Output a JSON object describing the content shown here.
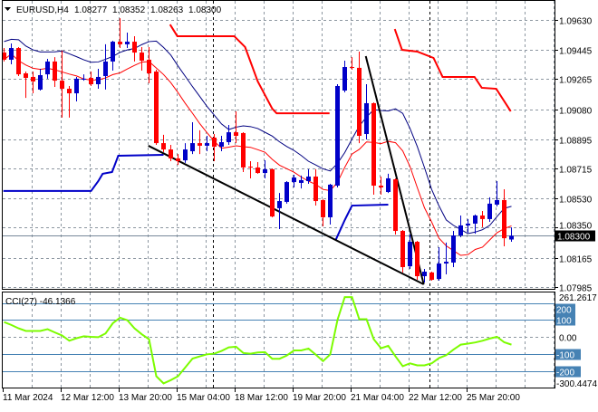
{
  "header": {
    "symbol": "EURUSD,H4",
    "open": "1.08277",
    "high": "1.08352",
    "low": "1.08263",
    "close": "1.08300"
  },
  "colors": {
    "bull": "#0000c8",
    "bear": "#ff0000",
    "ma_upper": "#000080",
    "ma_lower": "#ff0000",
    "cci": "#7cfc00",
    "level": "#4682b4",
    "price_line": "#778899",
    "trendline": "#000000"
  },
  "chart_data": {
    "type": "candlestick",
    "timeframe": "H4",
    "price_axis": {
      "ticks": [
        "1.09630",
        "1.09445",
        "1.09265",
        "1.09080",
        "1.08895",
        "1.08715",
        "1.08530",
        "1.08350",
        "1.08165",
        "1.07985"
      ],
      "current_price": "1.08300"
    },
    "time_axis": {
      "labels": [
        "11 Mar 2024",
        "12 Mar 12:00",
        "13 Mar 20:00",
        "15 Mar 04:00",
        "18 Mar 12:00",
        "19 Mar 20:00",
        "21 Mar 04:00",
        "22 Mar 12:00",
        "25 Mar 20:00"
      ]
    },
    "grid": true,
    "candles_ohlc": [
      [
        1.09429,
        1.09457,
        1.09374,
        1.09385
      ],
      [
        1.09385,
        1.09485,
        1.09357,
        1.09457
      ],
      [
        1.09457,
        1.09463,
        1.09284,
        1.09295
      ],
      [
        1.09301,
        1.09312,
        1.0915,
        1.09273
      ],
      [
        1.09279,
        1.09312,
        1.09178,
        1.09251
      ],
      [
        1.09201,
        1.09329,
        1.09195,
        1.0929
      ],
      [
        1.09295,
        1.0939,
        1.09268,
        1.09374
      ],
      [
        1.09374,
        1.09401,
        1.09217,
        1.09256
      ],
      [
        1.09256,
        1.09441,
        1.09028,
        1.09206
      ],
      [
        1.09206,
        1.09223,
        1.09028,
        1.09178
      ],
      [
        1.09178,
        1.09279,
        1.09128,
        1.09268
      ],
      [
        1.09262,
        1.09295,
        1.09256,
        1.09268
      ],
      [
        1.09273,
        1.09312,
        1.09223,
        1.09234
      ],
      [
        1.09234,
        1.09329,
        1.09206,
        1.09279
      ],
      [
        1.09284,
        1.0948,
        1.09201,
        1.09374
      ],
      [
        1.09374,
        1.09502,
        1.09318,
        1.09496
      ],
      [
        1.09496,
        1.09641,
        1.09457,
        1.0948
      ],
      [
        1.0948,
        1.09552,
        1.09457,
        1.09496
      ],
      [
        1.09496,
        1.0953,
        1.09374,
        1.09429
      ],
      [
        1.09429,
        1.09463,
        1.09318,
        1.09379
      ],
      [
        1.09385,
        1.09463,
        1.0924,
        1.09301
      ],
      [
        1.09312,
        1.09323,
        1.0886,
        1.08871
      ],
      [
        1.08871,
        1.08922,
        1.08816,
        1.08832
      ],
      [
        1.08832,
        1.0886,
        1.0876,
        1.08777
      ],
      [
        1.08777,
        1.08804,
        1.08737,
        1.0876
      ],
      [
        1.08765,
        1.08871,
        1.08749,
        1.08832
      ],
      [
        1.08821,
        1.09,
        1.08804,
        1.08871
      ],
      [
        1.08871,
        1.0895,
        1.08804,
        1.08855
      ],
      [
        1.08855,
        1.08916,
        1.08821,
        1.08871
      ],
      [
        1.08905,
        1.08927,
        1.0876,
        1.08849
      ],
      [
        1.08849,
        1.08916,
        1.08821,
        1.08877
      ],
      [
        1.08877,
        1.08983,
        1.0886,
        1.08938
      ],
      [
        1.08938,
        1.09067,
        1.08871,
        1.08916
      ],
      [
        1.08933,
        1.08938,
        1.08693,
        1.08721
      ],
      [
        1.08726,
        1.0876,
        1.08654,
        1.08721
      ],
      [
        1.08721,
        1.08754,
        1.08682,
        1.08687
      ],
      [
        1.08687,
        1.08765,
        1.08654,
        1.0871
      ],
      [
        1.0871,
        1.08715,
        1.08414,
        1.08419
      ],
      [
        1.0847,
        1.08564,
        1.08341,
        1.08514
      ],
      [
        1.08509,
        1.08637,
        1.08498,
        1.08631
      ],
      [
        1.08631,
        1.08676,
        1.08598,
        1.08659
      ],
      [
        1.08626,
        1.08671,
        1.08592,
        1.08643
      ],
      [
        1.08637,
        1.0871,
        1.0862,
        1.08665
      ],
      [
        1.08665,
        1.0871,
        1.08486,
        1.08514
      ],
      [
        1.0852,
        1.08525,
        1.08358,
        1.08414
      ],
      [
        1.08414,
        1.0862,
        1.08369,
        1.08615
      ],
      [
        1.08609,
        1.09234,
        1.08598,
        1.09223
      ],
      [
        1.09195,
        1.09379,
        1.09184,
        1.0934
      ],
      [
        1.0934,
        1.09401,
        1.09323,
        1.09335
      ],
      [
        1.09335,
        1.09435,
        1.08871,
        1.08916
      ],
      [
        1.08927,
        1.09234,
        1.08894,
        1.09117
      ],
      [
        1.09117,
        1.09122,
        1.08553,
        1.08609
      ],
      [
        1.08609,
        1.08665,
        1.08553,
        1.08598
      ],
      [
        1.0857,
        1.08682,
        1.08564,
        1.08654
      ],
      [
        1.08648,
        1.08654,
        1.08308,
        1.0833
      ],
      [
        1.0833,
        1.08336,
        1.08074,
        1.08107
      ],
      [
        1.08112,
        1.08308,
        1.08096,
        1.08263
      ],
      [
        1.08263,
        1.08269,
        1.08029,
        1.08051
      ],
      [
        1.08051,
        1.08096,
        1.08012,
        1.08079
      ],
      [
        1.08074,
        1.08079,
        1.08023,
        1.08029
      ],
      [
        1.08034,
        1.0823,
        1.08023,
        1.08129
      ],
      [
        1.08129,
        1.08258,
        1.08062,
        1.0814
      ],
      [
        1.08135,
        1.0833,
        1.08107,
        1.08302
      ],
      [
        1.08302,
        1.08425,
        1.08291,
        1.08364
      ],
      [
        1.08364,
        1.08403,
        1.08319,
        1.08375
      ],
      [
        1.08375,
        1.08431,
        1.08313,
        1.08425
      ],
      [
        1.08425,
        1.08453,
        1.08353,
        1.08403
      ],
      [
        1.08403,
        1.08537,
        1.08386,
        1.08498
      ],
      [
        1.08492,
        1.08637,
        1.08481,
        1.0852
      ],
      [
        1.0852,
        1.08587,
        1.08235,
        1.08285
      ],
      [
        1.08277,
        1.08352,
        1.08263,
        1.083
      ]
    ],
    "upper_step_line": [
      [
        [
          22.9,
          1.09602
        ],
        [
          23.9,
          1.0953
        ],
        [
          31.75,
          1.0953
        ],
        [
          33.25,
          1.09463
        ],
        [
          35,
          1.09251
        ],
        [
          37,
          1.09083
        ],
        [
          37.6,
          1.09055
        ],
        [
          44.9,
          1.09055
        ]
      ],
      [
        [
          53.9,
          1.09574
        ],
        [
          54.9,
          1.09446
        ],
        [
          57,
          1.09435
        ],
        [
          59.25,
          1.09396
        ],
        [
          60.5,
          1.09279
        ],
        [
          64.9,
          1.09279
        ],
        [
          65.9,
          1.09212
        ],
        [
          67.9,
          1.09206
        ],
        [
          69.9,
          1.09067
        ]
      ]
    ],
    "lower_step_line": [
      [
        [
          -0.1,
          1.08576
        ],
        [
          12,
          1.08576
        ],
        [
          13,
          1.08637
        ],
        [
          13.6,
          1.08682
        ],
        [
          14.9,
          1.08693
        ],
        [
          15.75,
          1.08793
        ],
        [
          22,
          1.08799
        ]
      ],
      [
        [
          45.75,
          1.08274
        ],
        [
          47,
          1.08397
        ],
        [
          48,
          1.08486
        ],
        [
          53,
          1.08492
        ]
      ]
    ],
    "trendlines": [
      [
        [
          19.9,
          1.08855
        ],
        [
          57.9,
          1.08001
        ]
      ],
      [
        [
          49.9,
          1.09407
        ],
        [
          57.9,
          1.08001
        ]
      ]
    ],
    "cci": {
      "label": "CCI(27) -46.1366",
      "max_label": "261.2617",
      "min_label": "-300.4474",
      "range": [
        -300.4474,
        261.2617
      ],
      "levels": [
        "200",
        "100",
        "0.00",
        "-100",
        "-200"
      ],
      "values": [
        87,
        70,
        50,
        35,
        35,
        35,
        45,
        26,
        8,
        -23,
        -8,
        3,
        0,
        -2,
        20,
        80,
        113,
        98,
        50,
        15,
        -14,
        -232,
        -274,
        -255,
        -232,
        -180,
        -128,
        -115,
        -103,
        -99,
        -83,
        -62,
        -58,
        -95,
        -99,
        -92,
        -90,
        -129,
        -129,
        -110,
        -80,
        -80,
        -69,
        -105,
        -143,
        -103,
        100,
        234,
        234,
        104,
        104,
        -14,
        -67,
        -53,
        -115,
        -173,
        -156,
        -168,
        -168,
        -156,
        -125,
        -108,
        -75,
        -46,
        -40,
        -33,
        -23,
        -10,
        0,
        -32,
        -46
      ]
    }
  }
}
